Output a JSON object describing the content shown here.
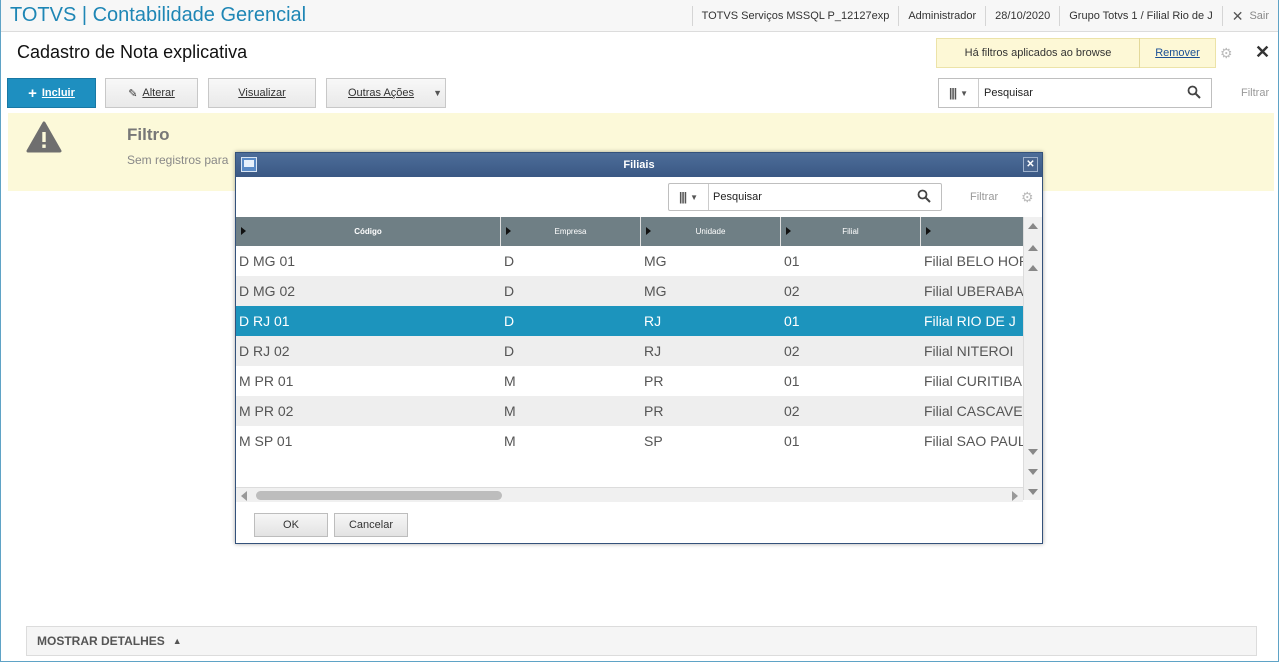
{
  "app": {
    "title": "TOTVS | Contabilidade Gerencial",
    "environment": "TOTVS Serviços MSSQL P_12127exp",
    "user": "Administrador",
    "date": "28/10/2020",
    "branch": "Grupo Totvs 1 / Filial Rio de J",
    "exit_label": "Sair"
  },
  "page": {
    "title": "Cadastro de Nota explicativa",
    "filter_notice": "Há filtros aplicados ao browse",
    "remove_label": "Remover"
  },
  "toolbar": {
    "include_label": "Incluir",
    "alter_label": "Alterar",
    "view_label": "Visualizar",
    "other_actions_label": "Outras Ações",
    "search_placeholder": "Pesquisar",
    "filter_label": "Filtrar"
  },
  "banner": {
    "title": "Filtro",
    "text": "Sem registros para"
  },
  "footer": {
    "details_label": "MOSTRAR DETALHES"
  },
  "modal": {
    "title": "Filiais",
    "search_placeholder": "Pesquisar",
    "filter_label": "Filtrar",
    "columns": [
      "Código",
      "Empresa",
      "Unidade",
      "Filial",
      ""
    ],
    "rows": [
      [
        "D MG 01",
        "D",
        "MG",
        "01",
        "Filial BELO HOR"
      ],
      [
        "D MG 02",
        "D",
        "MG",
        "02",
        "Filial UBERABA"
      ],
      [
        "D RJ 01",
        "D",
        "RJ",
        "01",
        "Filial RIO DE J"
      ],
      [
        "D RJ 02",
        "D",
        "RJ",
        "02",
        "Filial NITEROI"
      ],
      [
        "M PR 01",
        "M",
        "PR",
        "01",
        "Filial CURITIBA"
      ],
      [
        "M PR 02",
        "M",
        "PR",
        "02",
        "Filial CASCAVE"
      ],
      [
        "M SP 01",
        "M",
        "SP",
        "01",
        "Filial SAO PAUL"
      ]
    ],
    "ok_label": "OK",
    "cancel_label": "Cancelar"
  },
  "colors": {
    "brand": "#1e86b5",
    "selected_row": "#1c94bd",
    "modal_title": "#3a5884",
    "banner_bg": "#fcf9d9"
  }
}
